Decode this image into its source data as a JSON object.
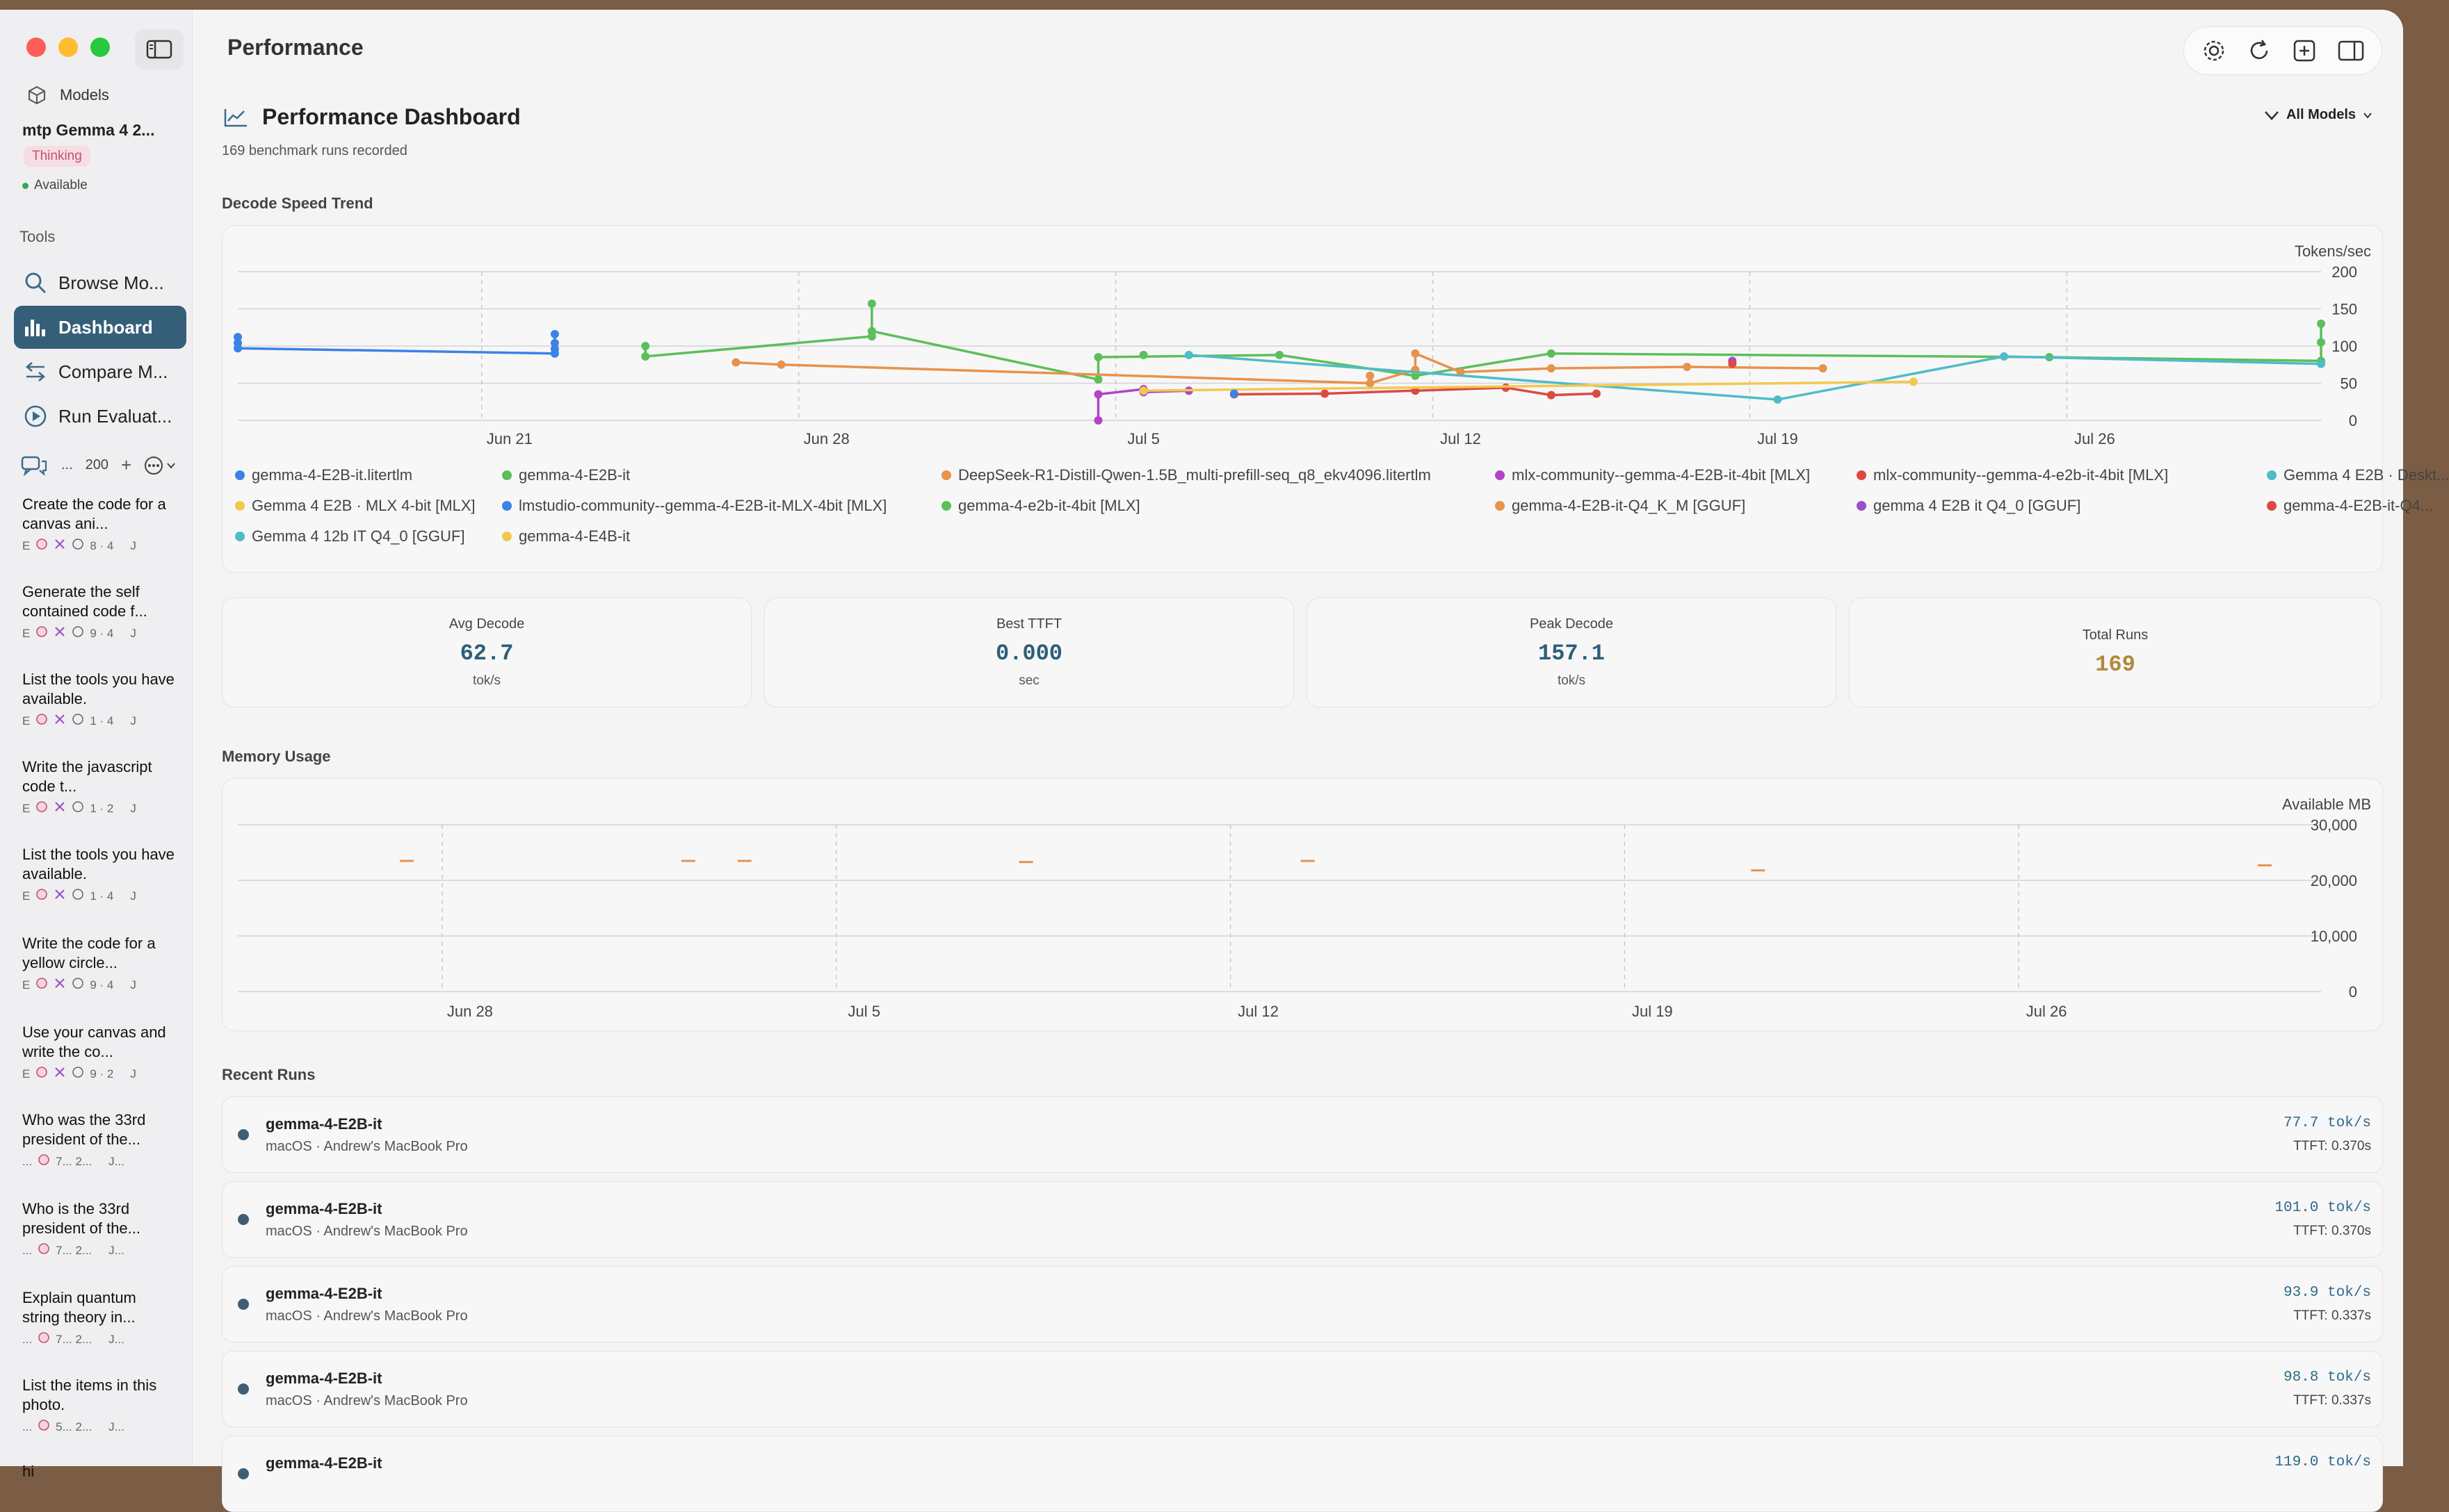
{
  "app": {
    "page_title": "Performance"
  },
  "sidebar": {
    "models_label": "Models",
    "current_model": "mtp Gemma 4 2...",
    "thinking_badge": "Thinking",
    "status": "Available",
    "tools_label": "Tools",
    "tools": [
      {
        "label": "Browse Mo...",
        "icon": "magnifier-icon",
        "active": false
      },
      {
        "label": "Dashboard",
        "icon": "bar-chart-icon",
        "active": true
      },
      {
        "label": "Compare M...",
        "icon": "arrows-swap-icon",
        "active": false
      },
      {
        "label": "Run Evaluat...",
        "icon": "play-circle-icon",
        "active": false
      }
    ],
    "conversations_count": "200",
    "conversations_ellipsis": "...",
    "conversations": [
      {
        "title": "Create the code for a canvas ani...",
        "meta_prefix": "E",
        "meta": "8 · 4",
        "meta_suffix": "J"
      },
      {
        "title": "Generate the self contained code f...",
        "meta_prefix": "E",
        "meta": "9 · 4",
        "meta_suffix": "J"
      },
      {
        "title": "List the tools you have available.",
        "meta_prefix": "E",
        "meta": "1 · 4",
        "meta_suffix": "J"
      },
      {
        "title": "Write the javascript code t...",
        "meta_prefix": "E",
        "meta": "1 · 2",
        "meta_suffix": "J"
      },
      {
        "title": "List the tools you have available.",
        "meta_prefix": "E",
        "meta": "1 · 4",
        "meta_suffix": "J"
      },
      {
        "title": "Write the code for a yellow circle...",
        "meta_prefix": "E",
        "meta": "9 · 4",
        "meta_suffix": "J"
      },
      {
        "title": "Use your canvas and write the co...",
        "meta_prefix": "E",
        "meta": "9 · 2",
        "meta_suffix": "J"
      },
      {
        "title": "Who was the 33rd president of the...",
        "meta_prefix": "...",
        "meta": "7... 2...",
        "meta_suffix": "J..."
      },
      {
        "title": "Who is the 33rd president of the...",
        "meta_prefix": "...",
        "meta": "7... 2...",
        "meta_suffix": "J..."
      },
      {
        "title": "Explain quantum string theory in...",
        "meta_prefix": "...",
        "meta": "7... 2...",
        "meta_suffix": "J..."
      },
      {
        "title": "List  the items in this photo.",
        "meta_prefix": "...",
        "meta": "5... 2...",
        "meta_suffix": "J..."
      },
      {
        "title": "hi",
        "meta_prefix": "",
        "meta": "",
        "meta_suffix": ""
      }
    ]
  },
  "dashboard": {
    "title": "Performance Dashboard",
    "subtitle": "169 benchmark runs recorded",
    "filter_label": "All Models",
    "decode_section": "Decode Speed Trend",
    "memory_section": "Memory Usage",
    "recent_section": "Recent Runs"
  },
  "stats": [
    {
      "label": "Avg Decode",
      "value": "62.7",
      "unit": "tok/s"
    },
    {
      "label": "Best TTFT",
      "value": "0.000",
      "unit": "sec"
    },
    {
      "label": "Peak Decode",
      "value": "157.1",
      "unit": "tok/s"
    },
    {
      "label": "Total Runs",
      "value": "169",
      "unit": ""
    }
  ],
  "colors": {
    "accent": "#355f78",
    "stat_value": "#2e5e78",
    "total_runs": "#b08a3a",
    "blue": "#3b82e6",
    "green": "#5cbf5a",
    "orange": "#e8924a",
    "magenta": "#b342c8",
    "red": "#dc4a42",
    "yellow": "#f2c94c",
    "teal": "#4fbcc8",
    "purple": "#9a50c8"
  },
  "recent_runs": [
    {
      "model": "gemma-4-E2B-it",
      "device": "macOS · Andrew's MacBook Pro",
      "speed": "77.7 tok/s",
      "ttft": "TTFT: 0.370s"
    },
    {
      "model": "gemma-4-E2B-it",
      "device": "macOS · Andrew's MacBook Pro",
      "speed": "101.0 tok/s",
      "ttft": "TTFT: 0.370s"
    },
    {
      "model": "gemma-4-E2B-it",
      "device": "macOS · Andrew's MacBook Pro",
      "speed": "93.9 tok/s",
      "ttft": "TTFT: 0.337s"
    },
    {
      "model": "gemma-4-E2B-it",
      "device": "macOS · Andrew's MacBook Pro",
      "speed": "98.8 tok/s",
      "ttft": "TTFT: 0.337s"
    },
    {
      "model": "gemma-4-E2B-it",
      "device": "",
      "speed": "119.0 tok/s",
      "ttft": ""
    }
  ],
  "chart_data": [
    {
      "type": "line",
      "title": "Decode Speed Trend",
      "ylabel": "Tokens/sec",
      "ylim": [
        0,
        200
      ],
      "y_ticks": [
        0,
        50,
        100,
        150,
        200
      ],
      "x_ticks": [
        "Jun 21",
        "Jun 28",
        "Jul 5",
        "Jul 12",
        "Jul 19",
        "Jul 26"
      ],
      "xlim": [
        "2025-06-15",
        "2025-07-31"
      ],
      "grid": true,
      "legend_position": "bottom",
      "series": [
        {
          "name": "gemma-4-E2B-it.litertlm",
          "color": "#3b82e6",
          "points": [
            [
              "2025-06-15",
              112
            ],
            [
              "2025-06-15",
              104
            ],
            [
              "2025-06-15",
              97
            ],
            [
              "2025-06-22",
              90
            ],
            [
              "2025-06-22",
              96
            ],
            [
              "2025-06-22",
              104
            ],
            [
              "2025-06-22",
              116
            ]
          ]
        },
        {
          "name": "gemma-4-E2B-it",
          "color": "#5cbf5a",
          "points": [
            [
              "2025-06-24",
              100
            ],
            [
              "2025-06-24",
              86
            ],
            [
              "2025-06-29",
              113
            ],
            [
              "2025-06-29",
              157
            ],
            [
              "2025-06-29",
              120
            ],
            [
              "2025-07-04",
              55
            ],
            [
              "2025-07-04",
              85
            ],
            [
              "2025-07-08",
              88
            ],
            [
              "2025-07-11",
              60
            ],
            [
              "2025-07-14",
              90
            ],
            [
              "2025-07-25",
              85
            ],
            [
              "2025-07-31",
              80
            ],
            [
              "2025-07-31",
              105
            ],
            [
              "2025-07-31",
              130
            ]
          ]
        },
        {
          "name": "DeepSeek-R1-Distill-Qwen-1.5B_multi-prefill-seq_q8_ekv4096.litertlm",
          "color": "#e8924a",
          "points": [
            [
              "2025-06-26",
              78
            ],
            [
              "2025-06-27",
              75
            ],
            [
              "2025-07-10",
              50
            ],
            [
              "2025-07-11",
              68
            ],
            [
              "2025-07-11",
              90
            ],
            [
              "2025-07-12",
              65
            ],
            [
              "2025-07-14",
              70
            ],
            [
              "2025-07-17",
              72
            ],
            [
              "2025-07-20",
              70
            ]
          ]
        },
        {
          "name": "mlx-community--gemma-4-E2B-it-4bit [MLX]",
          "color": "#b342c8",
          "points": [
            [
              "2025-07-04",
              0
            ],
            [
              "2025-07-04",
              35
            ],
            [
              "2025-07-05",
              42
            ],
            [
              "2025-07-05",
              38
            ],
            [
              "2025-07-06",
              40
            ]
          ]
        },
        {
          "name": "mlx-community--gemma-4-e2b-it-4bit [MLX]",
          "color": "#dc4a42",
          "points": [
            [
              "2025-07-07",
              35
            ],
            [
              "2025-07-09",
              36
            ],
            [
              "2025-07-11",
              40
            ],
            [
              "2025-07-13",
              44
            ],
            [
              "2025-07-14",
              34
            ],
            [
              "2025-07-15",
              36
            ]
          ]
        },
        {
          "name": "Gemma 4 E2B · Deskt...",
          "color": "#4fbcc8",
          "points": [
            [
              "2025-07-06",
              88
            ],
            [
              "2025-07-19",
              28
            ],
            [
              "2025-07-24",
              86
            ],
            [
              "2025-07-31",
              76
            ]
          ]
        },
        {
          "name": "Gemma 4 E2B · MLX 4-bit [MLX]",
          "color": "#f2c94c",
          "points": [
            [
              "2025-07-05",
              40
            ],
            [
              "2025-07-22",
              52
            ]
          ]
        },
        {
          "name": "lmstudio-community--gemma-4-E2B-it-MLX-4bit [MLX]",
          "color": "#3b82e6",
          "points": [
            [
              "2025-07-07",
              36
            ]
          ]
        },
        {
          "name": "gemma-4-e2b-it-4bit [MLX]",
          "color": "#5cbf5a",
          "points": [
            [
              "2025-07-05",
              88
            ]
          ]
        },
        {
          "name": "gemma-4-E2B-it-Q4_K_M [GGUF]",
          "color": "#e8924a",
          "points": [
            [
              "2025-07-10",
              60
            ]
          ]
        },
        {
          "name": "gemma 4 E2B it Q4_0 [GGUF]",
          "color": "#9a50c8",
          "points": [
            [
              "2025-07-18",
              80
            ]
          ]
        },
        {
          "name": "gemma-4-E2B-it-Q4...",
          "color": "#dc4a42",
          "points": [
            [
              "2025-07-18",
              76
            ]
          ]
        },
        {
          "name": "Gemma 4 12b IT Q4_0 [GGUF]",
          "color": "#4fbcc8",
          "points": []
        },
        {
          "name": "gemma-4-E4B-it",
          "color": "#f2c94c",
          "points": []
        }
      ]
    },
    {
      "type": "scatter",
      "title": "Memory Usage",
      "ylabel": "Available MB",
      "ylim": [
        0,
        30000
      ],
      "y_ticks": [
        "0",
        "10,000",
        "20,000",
        "30,000"
      ],
      "x_ticks": [
        "Jun 28",
        "Jul 5",
        "Jul 12",
        "Jul 19",
        "Jul 26"
      ],
      "xlim": [
        "2025-06-24",
        "2025-07-31"
      ],
      "grid": true,
      "series": [
        {
          "name": "memory",
          "color": "#e8924a",
          "points": [
            [
              "2025-06-27",
              23500
            ],
            [
              "2025-07-02",
              23500
            ],
            [
              "2025-07-03",
              23500
            ],
            [
              "2025-07-08",
              23300
            ],
            [
              "2025-07-13",
              23500
            ],
            [
              "2025-07-21",
              21800
            ],
            [
              "2025-07-30",
              22700
            ]
          ]
        }
      ]
    }
  ]
}
